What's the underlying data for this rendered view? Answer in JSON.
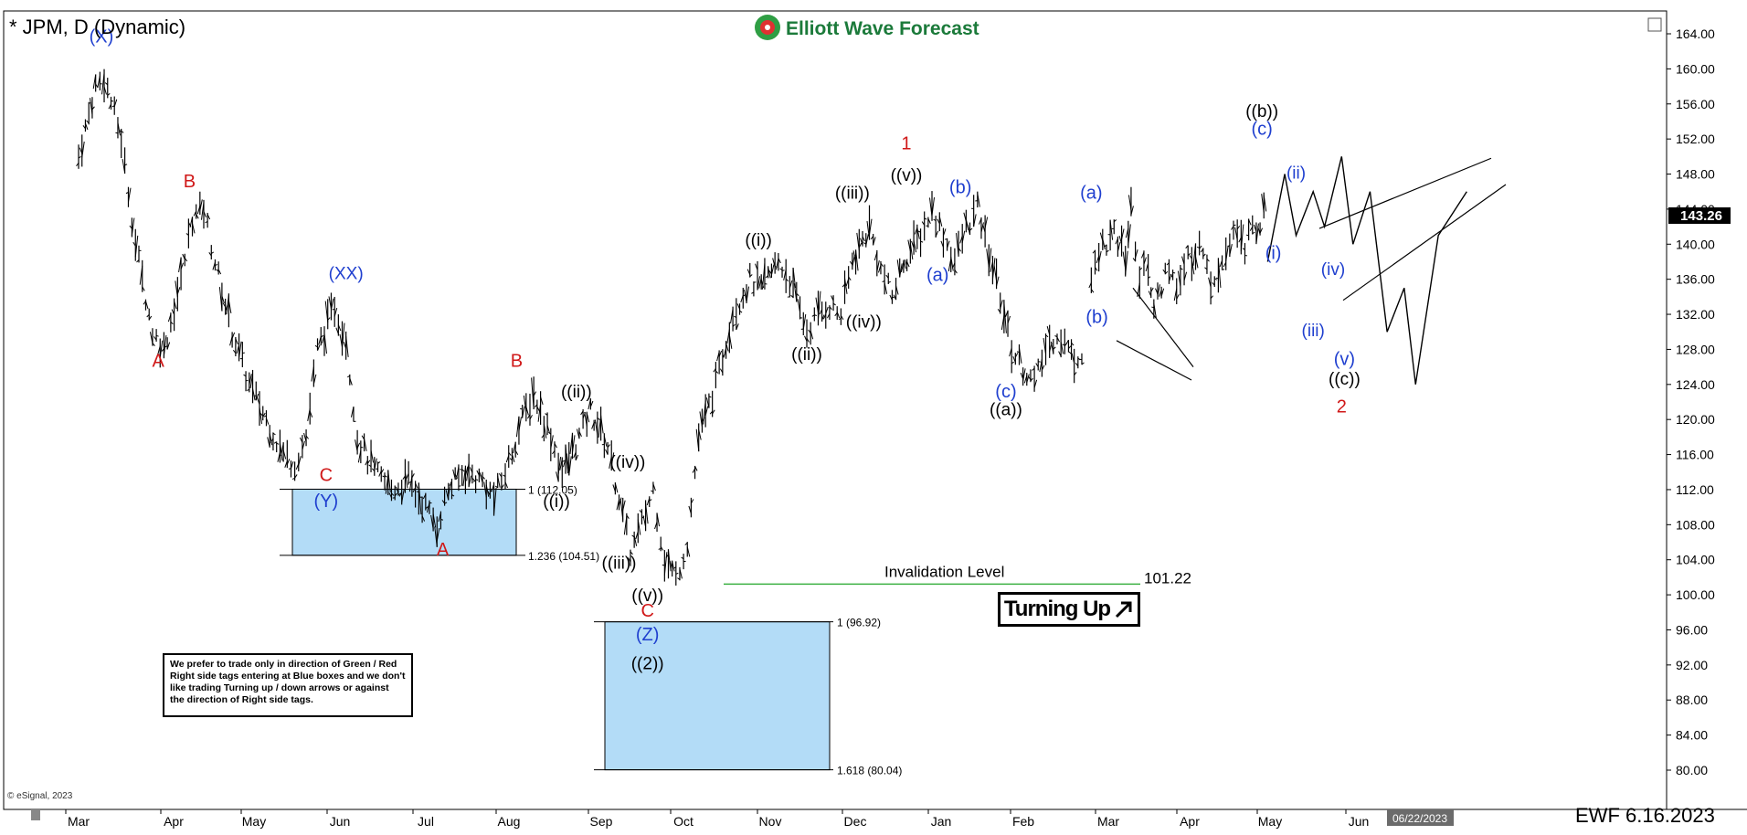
{
  "header": {
    "title": "* JPM, D (Dynamic)",
    "brand": "Elliott Wave Forecast",
    "footer_left": "© eSignal, 2023",
    "footer_right": "EWF 6.16.2023",
    "date_badge": "06/22/2023",
    "last_price": "143.26"
  },
  "colors": {
    "blue_box": "#b3dcf7",
    "blue_label": "#1f3fcf",
    "red_label": "#d01818",
    "invalidation": "#3cb043"
  },
  "chart_data": {
    "type": "bar",
    "ylim": [
      78,
      166
    ],
    "y_ticks": [
      "164.00",
      "160.00",
      "156.00",
      "152.00",
      "148.00",
      "144.00",
      "140.00",
      "136.00",
      "132.00",
      "128.00",
      "124.00",
      "120.00",
      "116.00",
      "112.00",
      "108.00",
      "104.00",
      "100.00",
      "96.00",
      "92.00",
      "88.00",
      "84.00",
      "80.00"
    ],
    "x_months": [
      "Mar",
      "Apr",
      "May",
      "Jun",
      "Jul",
      "Aug",
      "Sep",
      "Oct",
      "Nov",
      "Dec",
      "Jan",
      "Feb",
      "Mar",
      "Apr",
      "May",
      "Jun"
    ],
    "price_path": [
      [
        0,
        150
      ],
      [
        0.6,
        158
      ],
      [
        0.9,
        159
      ],
      [
        1.5,
        152
      ],
      [
        2,
        140
      ],
      [
        2.6,
        130
      ],
      [
        3.0,
        128
      ],
      [
        3.6,
        136
      ],
      [
        4.0,
        143
      ],
      [
        4.4,
        144
      ],
      [
        4.8,
        138
      ],
      [
        5.4,
        130
      ],
      [
        6.0,
        124
      ],
      [
        6.6,
        120
      ],
      [
        7.2,
        116
      ],
      [
        7.6,
        115
      ],
      [
        8.0,
        118
      ],
      [
        8.4,
        128
      ],
      [
        9.0,
        133
      ],
      [
        9.4,
        129
      ],
      [
        9.8,
        118
      ],
      [
        10.4,
        114
      ],
      [
        11.0,
        112
      ],
      [
        11.6,
        113
      ],
      [
        12.2,
        110
      ],
      [
        12.6,
        108
      ],
      [
        13.0,
        112
      ],
      [
        13.6,
        114
      ],
      [
        14.2,
        113
      ],
      [
        14.6,
        111
      ],
      [
        15.0,
        114
      ],
      [
        15.6,
        120
      ],
      [
        16.0,
        123
      ],
      [
        16.6,
        118
      ],
      [
        17.0,
        114
      ],
      [
        17.6,
        118
      ],
      [
        18.0,
        121
      ],
      [
        18.6,
        117
      ],
      [
        19.0,
        111
      ],
      [
        19.4,
        105
      ],
      [
        19.8,
        108
      ],
      [
        20.2,
        112
      ],
      [
        20.6,
        104
      ],
      [
        21.0,
        102
      ],
      [
        21.4,
        106
      ],
      [
        21.8,
        118
      ],
      [
        22.4,
        124
      ],
      [
        23.0,
        132
      ],
      [
        23.6,
        136
      ],
      [
        24.0,
        135
      ],
      [
        24.6,
        138
      ],
      [
        25.0,
        136
      ],
      [
        25.6,
        130
      ],
      [
        26.0,
        132
      ],
      [
        26.4,
        133
      ],
      [
        26.8,
        132
      ],
      [
        27.2,
        138
      ],
      [
        27.8,
        142
      ],
      [
        28.2,
        137
      ],
      [
        28.6,
        134
      ],
      [
        29.0,
        138
      ],
      [
        29.6,
        141
      ],
      [
        30.0,
        144
      ],
      [
        30.4,
        141
      ],
      [
        30.8,
        138
      ],
      [
        31.2,
        142
      ],
      [
        31.6,
        144
      ],
      [
        32.0,
        139
      ],
      [
        32.4,
        134
      ],
      [
        32.8,
        128
      ],
      [
        33.2,
        126
      ],
      [
        33.6,
        124
      ],
      [
        34.0,
        128
      ],
      [
        34.4,
        130
      ],
      [
        34.8,
        128
      ],
      [
        35.0,
        127
      ],
      [
        35.4,
        128
      ]
    ],
    "price_path_2": [
      [
        35.6,
        136
      ],
      [
        36.0,
        140
      ],
      [
        36.4,
        141
      ],
      [
        36.8,
        139
      ],
      [
        37.0,
        144
      ],
      [
        37.3,
        136
      ],
      [
        37.6,
        138
      ],
      [
        37.8,
        132
      ],
      [
        38.2,
        137
      ],
      [
        38.6,
        135
      ],
      [
        39.0,
        138
      ],
      [
        39.4,
        140
      ],
      [
        39.8,
        136
      ],
      [
        40.2,
        138
      ],
      [
        40.6,
        141
      ],
      [
        41.0,
        140
      ],
      [
        41.4,
        142
      ],
      [
        41.8,
        144
      ]
    ],
    "projection": [
      [
        41.8,
        138
      ],
      [
        42.4,
        148
      ],
      [
        42.8,
        141
      ],
      [
        43.4,
        146
      ],
      [
        43.8,
        142
      ],
      [
        44.4,
        150
      ],
      [
        44.8,
        140
      ],
      [
        45.4,
        146
      ],
      [
        46.0,
        130
      ],
      [
        46.6,
        135
      ],
      [
        47.0,
        124
      ],
      [
        47.8,
        141
      ],
      [
        48.8,
        146
      ]
    ],
    "fib_levels": [
      {
        "label": "1 (112.05)",
        "value": 112.05
      },
      {
        "label": "1.236 (104.51)",
        "value": 104.51
      },
      {
        "label": "1 (96.92)",
        "value": 96.92
      },
      {
        "label": "1.618 (80.04)",
        "value": 80.04
      }
    ],
    "invalidation": {
      "label": "Invalidation Level",
      "value": 101.22,
      "value_label": "101.22"
    },
    "wave_labels": [
      {
        "text": "(X)",
        "x": 0.8,
        "y": 163,
        "color": "blue"
      },
      {
        "text": "A",
        "x": 2.8,
        "y": 126,
        "color": "red"
      },
      {
        "text": "B",
        "x": 3.9,
        "y": 146.5,
        "color": "red"
      },
      {
        "text": "C",
        "x": 8.7,
        "y": 113,
        "color": "red"
      },
      {
        "text": "(Y)",
        "x": 8.7,
        "y": 110,
        "color": "blue"
      },
      {
        "text": "(XX)",
        "x": 9.4,
        "y": 136,
        "color": "blue"
      },
      {
        "text": "A",
        "x": 12.8,
        "y": 104.5,
        "color": "red"
      },
      {
        "text": "B",
        "x": 15.4,
        "y": 126,
        "color": "red"
      },
      {
        "text": "((i))",
        "x": 16.8,
        "y": 110,
        "color": "black"
      },
      {
        "text": "((ii))",
        "x": 17.5,
        "y": 122.5,
        "color": "black"
      },
      {
        "text": "((iii))",
        "x": 19.0,
        "y": 103,
        "color": "black"
      },
      {
        "text": "((iv))",
        "x": 19.3,
        "y": 114.5,
        "color": "black"
      },
      {
        "text": "((v))",
        "x": 20.0,
        "y": 99.3,
        "color": "black"
      },
      {
        "text": "C",
        "x": 20.0,
        "y": 97.5,
        "color": "red"
      },
      {
        "text": "(Z)",
        "x": 20.0,
        "y": 94.8,
        "color": "blue"
      },
      {
        "text": "((2))",
        "x": 20.0,
        "y": 91.5,
        "color": "black"
      },
      {
        "text": "((i))",
        "x": 23.9,
        "y": 139.8,
        "color": "black"
      },
      {
        "text": "((ii))",
        "x": 25.6,
        "y": 126.8,
        "color": "black"
      },
      {
        "text": "((iii))",
        "x": 27.2,
        "y": 145.2,
        "color": "black"
      },
      {
        "text": "((iv))",
        "x": 27.6,
        "y": 130.5,
        "color": "black"
      },
      {
        "text": "((v))",
        "x": 29.1,
        "y": 147.2,
        "color": "black"
      },
      {
        "text": "1",
        "x": 29.1,
        "y": 150.8,
        "color": "red"
      },
      {
        "text": "(a)",
        "x": 30.2,
        "y": 135.8,
        "color": "blue"
      },
      {
        "text": "(b)",
        "x": 31.0,
        "y": 145.8,
        "color": "blue"
      },
      {
        "text": "(c)",
        "x": 32.6,
        "y": 122.5,
        "color": "blue"
      },
      {
        "text": "((a))",
        "x": 32.6,
        "y": 120.5,
        "color": "black"
      },
      {
        "text": "(a)",
        "x": 35.6,
        "y": 145.2,
        "color": "blue"
      },
      {
        "text": "(b)",
        "x": 35.8,
        "y": 131,
        "color": "blue"
      },
      {
        "text": "((b))",
        "x": 41.6,
        "y": 154.5,
        "color": "black"
      },
      {
        "text": "(c)",
        "x": 41.6,
        "y": 152.5,
        "color": "blue"
      },
      {
        "text": "(ii)",
        "x": 42.8,
        "y": 147.5,
        "color": "blue"
      },
      {
        "text": "(i)",
        "x": 42.0,
        "y": 138.3,
        "color": "blue"
      },
      {
        "text": "(iv)",
        "x": 44.1,
        "y": 136.5,
        "color": "blue"
      },
      {
        "text": "(iii)",
        "x": 43.4,
        "y": 129.5,
        "color": "blue"
      },
      {
        "text": "(v)",
        "x": 44.5,
        "y": 126.2,
        "color": "blue"
      },
      {
        "text": "((c))",
        "x": 44.5,
        "y": 124,
        "color": "black"
      },
      {
        "text": "2",
        "x": 44.4,
        "y": 120.8,
        "color": "red"
      }
    ]
  },
  "disclaimer": "We prefer to trade only in direction of Green / Red Right side tags entering at Blue boxes and we don't like trading Turning up / down arrows or against the direction of Right side tags.",
  "turning_label": "Turning Up"
}
